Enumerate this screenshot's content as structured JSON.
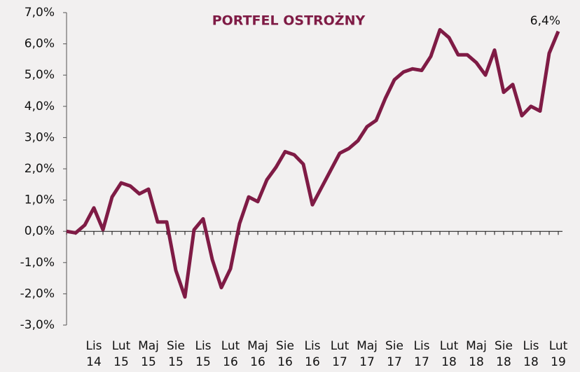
{
  "chart_data": {
    "type": "line",
    "title": "PORTFEL OSTROŻNY",
    "categories": [
      null,
      null,
      null,
      "Lis 14",
      null,
      null,
      "Lut 15",
      null,
      null,
      "Maj 15",
      null,
      null,
      "Sie 15",
      null,
      null,
      "Lis 15",
      null,
      null,
      "Lut 16",
      null,
      null,
      "Maj 16",
      null,
      null,
      "Sie 16",
      null,
      null,
      "Lis 16",
      null,
      null,
      "Lut 17",
      null,
      null,
      "Maj 17",
      null,
      null,
      "Sie 17",
      null,
      null,
      "Lis 17",
      null,
      null,
      "Lut 18",
      null,
      null,
      "Maj 18",
      null,
      null,
      "Sie 18",
      null,
      null,
      "Lis 18",
      null,
      null,
      "Lut 19"
    ],
    "series": [
      {
        "color": "#7f1b45",
        "values": [
          0.0,
          -0.05,
          0.2,
          0.75,
          0.05,
          1.1,
          1.55,
          1.45,
          1.2,
          1.35,
          0.3,
          0.3,
          -1.25,
          -2.1,
          0.05,
          0.4,
          -0.9,
          -1.8,
          -1.2,
          0.25,
          1.1,
          0.95,
          1.65,
          2.05,
          2.55,
          2.45,
          2.15,
          0.85,
          1.4,
          1.95,
          2.5,
          2.65,
          2.9,
          3.35,
          3.55,
          4.25,
          4.85,
          5.1,
          5.2,
          5.15,
          5.6,
          6.45,
          6.2,
          5.65,
          5.65,
          5.4,
          5.0,
          5.8,
          4.45,
          4.7,
          3.7,
          4.0,
          3.85,
          5.7,
          6.4
        ],
        "value_labels": [
          null,
          null,
          null,
          null,
          null,
          null,
          null,
          null,
          null,
          null,
          null,
          null,
          null,
          null,
          null,
          null,
          null,
          null,
          null,
          null,
          null,
          null,
          null,
          null,
          null,
          null,
          null,
          null,
          null,
          null,
          null,
          null,
          null,
          null,
          null,
          null,
          null,
          null,
          null,
          null,
          null,
          null,
          null,
          null,
          null,
          null,
          null,
          null,
          null,
          null,
          null,
          null,
          null,
          null,
          "6,4%"
        ]
      }
    ],
    "ylim": [
      -3,
      7
    ],
    "yticks": [
      {
        "value": -3,
        "label": "-3,0%"
      },
      {
        "value": -2,
        "label": "-2,0%"
      },
      {
        "value": -1,
        "label": "-1,0%"
      },
      {
        "value": 0,
        "label": "0,0%"
      },
      {
        "value": 1,
        "label": "1,0%"
      },
      {
        "value": 2,
        "label": "2,0%"
      },
      {
        "value": 3,
        "label": "3,0%"
      },
      {
        "value": 4,
        "label": "4,0%"
      },
      {
        "value": 5,
        "label": "5,0%"
      },
      {
        "value": 6,
        "label": "6,0%"
      },
      {
        "value": 7,
        "label": "7,0%"
      }
    ]
  }
}
